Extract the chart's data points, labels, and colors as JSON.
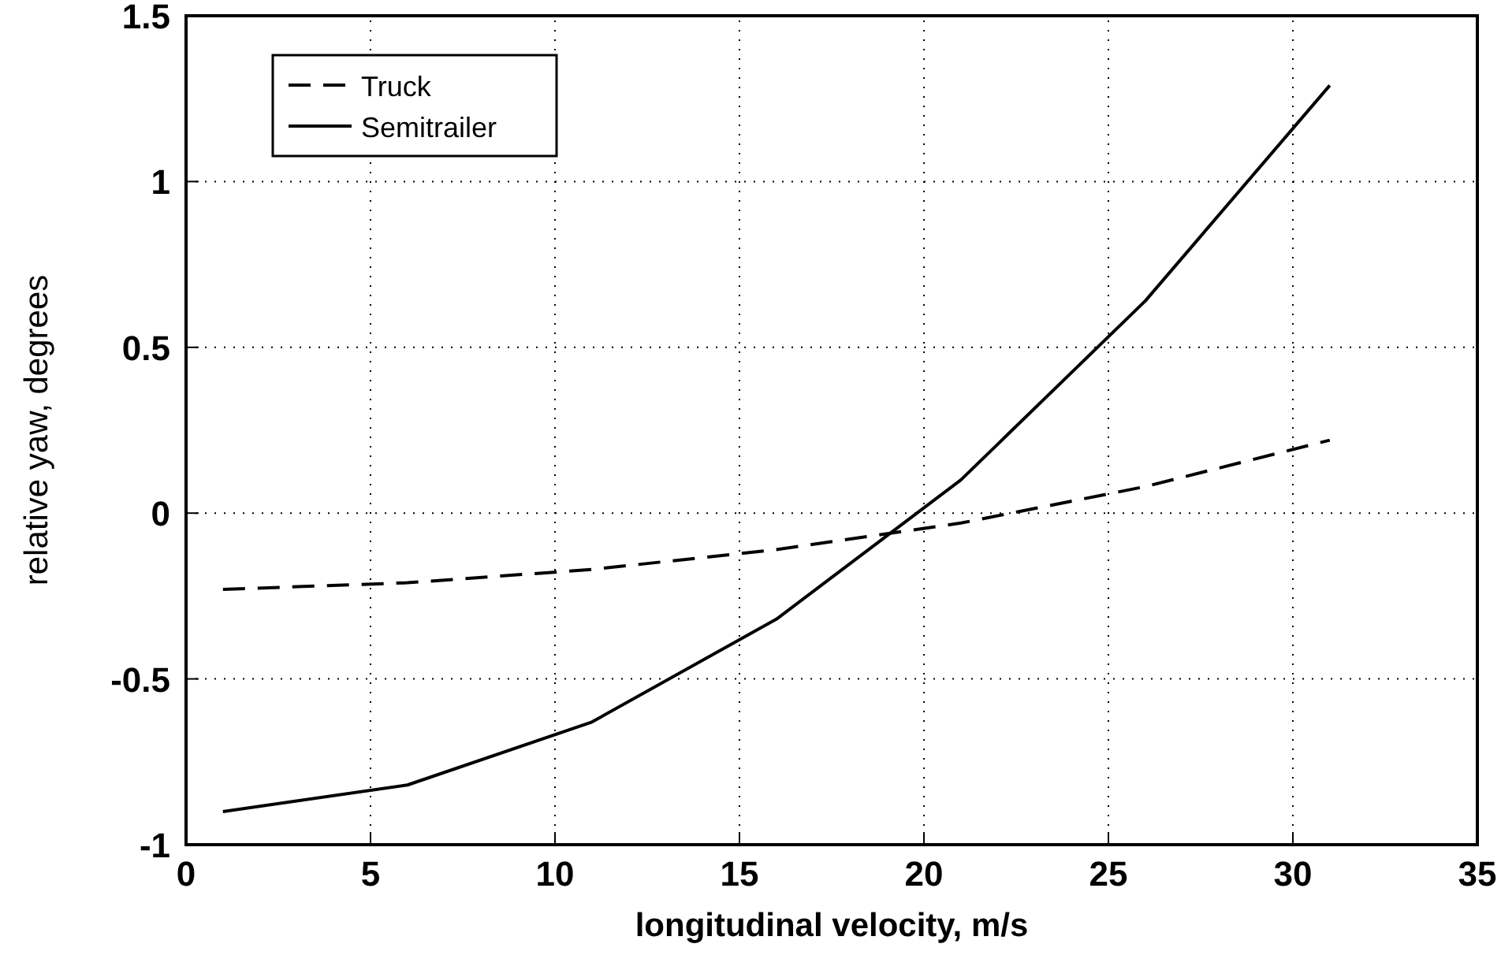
{
  "chart_data": {
    "type": "line",
    "xlabel": "longitudinal velocity, m/s",
    "ylabel": "relative yaw, degrees",
    "xlim": [
      0,
      35
    ],
    "xticks": [
      0,
      5,
      10,
      15,
      20,
      25,
      30,
      35
    ],
    "ylim": [
      -1,
      1.5
    ],
    "yticks": [
      -1,
      -0.5,
      0,
      0.5,
      1,
      1.5
    ],
    "grid": true,
    "legend": "top left",
    "series": [
      {
        "name": "Truck",
        "color": "#000000",
        "line_style": "dashed",
        "x": [
          1,
          6,
          11,
          16,
          21,
          26,
          31
        ],
        "values": [
          -0.23,
          -0.21,
          -0.17,
          -0.11,
          -0.03,
          0.08,
          0.22
        ]
      },
      {
        "name": "Semitrailer",
        "color": "#000000",
        "line_style": "solid",
        "x": [
          1,
          6,
          11,
          16,
          21,
          26,
          31
        ],
        "values": [
          -0.9,
          -0.82,
          -0.63,
          -0.32,
          0.1,
          0.64,
          1.29
        ]
      }
    ]
  }
}
